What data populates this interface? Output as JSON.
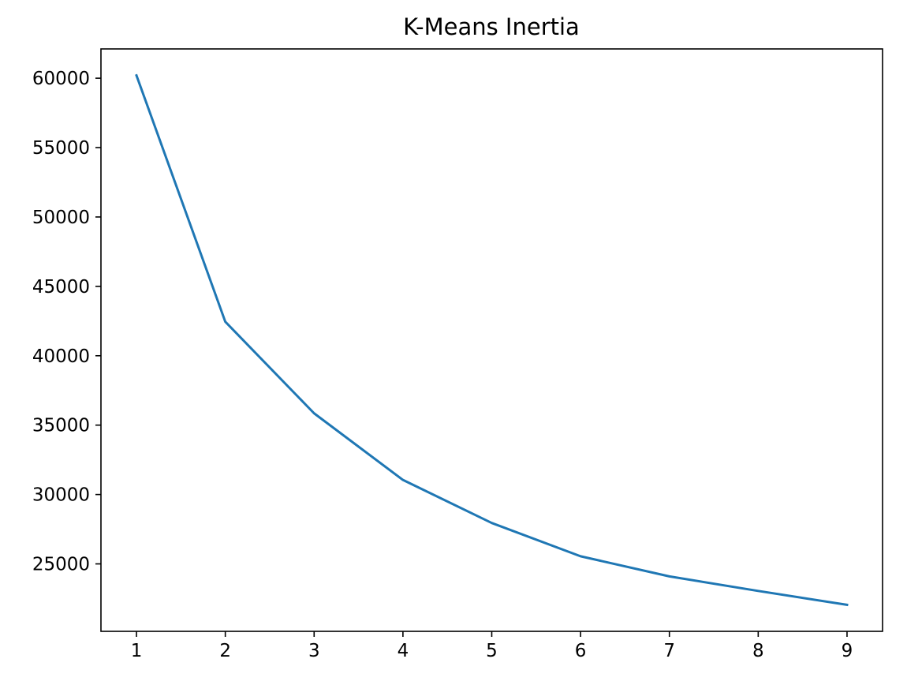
{
  "chart_data": {
    "type": "line",
    "title": "K-Means Inertia",
    "xlabel": "",
    "ylabel": "",
    "x": [
      1,
      2,
      3,
      4,
      5,
      6,
      7,
      8,
      9
    ],
    "series": [
      {
        "values": [
          60200,
          42450,
          35850,
          31050,
          27950,
          25550,
          24100,
          23050,
          22050
        ],
        "color": "#1f77b4"
      }
    ],
    "xticks": [
      1,
      2,
      3,
      4,
      5,
      6,
      7,
      8,
      9
    ],
    "xtick_labels": [
      "1",
      "2",
      "3",
      "4",
      "5",
      "6",
      "7",
      "8",
      "9"
    ],
    "yticks": [
      25000,
      30000,
      35000,
      40000,
      45000,
      50000,
      55000,
      60000
    ],
    "ytick_labels": [
      "25000",
      "30000",
      "35000",
      "40000",
      "45000",
      "50000",
      "55000",
      "60000"
    ],
    "xlim": [
      0.6,
      9.4
    ],
    "ylim": [
      20140,
      62110
    ],
    "grid": false,
    "legend": "none"
  }
}
